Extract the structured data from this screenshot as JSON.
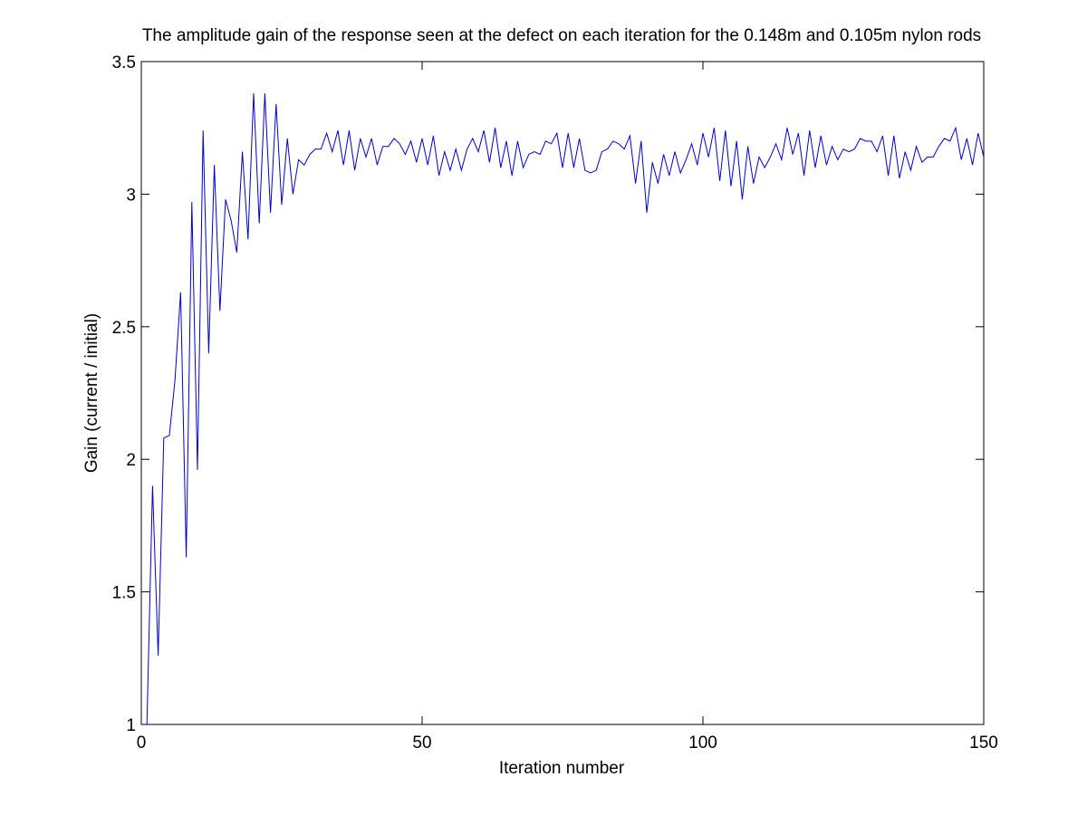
{
  "chart_data": {
    "type": "line",
    "title": "The amplitude gain of the response seen at the defect on each iteration for the 0.148m and 0.105m nylon rods",
    "xlabel": "Iteration number",
    "ylabel": "Gain (current / initial)",
    "xlim": [
      0,
      150
    ],
    "xticks": [
      0,
      50,
      100,
      150
    ],
    "ylim": [
      1,
      3.5
    ],
    "yticks": [
      1,
      1.5,
      2,
      2.5,
      3,
      3.5
    ],
    "x": [
      1,
      2,
      3,
      4,
      5,
      6,
      7,
      8,
      9,
      10,
      11,
      12,
      13,
      14,
      15,
      16,
      17,
      18,
      19,
      20,
      21,
      22,
      23,
      24,
      25,
      26,
      27,
      28,
      29,
      30,
      31,
      32,
      33,
      34,
      35,
      36,
      37,
      38,
      39,
      40,
      41,
      42,
      43,
      44,
      45,
      46,
      47,
      48,
      49,
      50,
      51,
      52,
      53,
      54,
      55,
      56,
      57,
      58,
      59,
      60,
      61,
      62,
      63,
      64,
      65,
      66,
      67,
      68,
      69,
      70,
      71,
      72,
      73,
      74,
      75,
      76,
      77,
      78,
      79,
      80,
      81,
      82,
      83,
      84,
      85,
      86,
      87,
      88,
      89,
      90,
      91,
      92,
      93,
      94,
      95,
      96,
      97,
      98,
      99,
      100,
      101,
      102,
      103,
      104,
      105,
      106,
      107,
      108,
      109,
      110,
      111,
      112,
      113,
      114,
      115,
      116,
      117,
      118,
      119,
      120,
      121,
      122,
      123,
      124,
      125,
      126,
      127,
      128,
      129,
      130,
      131,
      132,
      133,
      134,
      135,
      136,
      137,
      138,
      139,
      140,
      141,
      142,
      143,
      144,
      145,
      146,
      147,
      148,
      149,
      150
    ],
    "series": [
      {
        "color": "#0000cc",
        "values": [
          1.0,
          1.9,
          1.26,
          2.08,
          2.09,
          2.3,
          2.63,
          1.63,
          2.97,
          1.96,
          3.24,
          2.4,
          3.11,
          2.56,
          2.98,
          2.9,
          2.78,
          3.16,
          2.83,
          3.38,
          2.89,
          3.38,
          2.93,
          3.34,
          2.96,
          3.21,
          3.0,
          3.13,
          3.11,
          3.15,
          3.17,
          3.17,
          3.23,
          3.16,
          3.24,
          3.11,
          3.24,
          3.09,
          3.21,
          3.14,
          3.21,
          3.11,
          3.18,
          3.18,
          3.21,
          3.19,
          3.15,
          3.2,
          3.12,
          3.21,
          3.11,
          3.22,
          3.07,
          3.16,
          3.09,
          3.17,
          3.09,
          3.17,
          3.21,
          3.16,
          3.24,
          3.12,
          3.25,
          3.1,
          3.2,
          3.07,
          3.2,
          3.1,
          3.15,
          3.16,
          3.15,
          3.2,
          3.19,
          3.23,
          3.1,
          3.23,
          3.1,
          3.21,
          3.09,
          3.08,
          3.09,
          3.16,
          3.17,
          3.2,
          3.19,
          3.17,
          3.22,
          3.04,
          3.2,
          2.93,
          3.12,
          3.04,
          3.15,
          3.07,
          3.16,
          3.08,
          3.13,
          3.19,
          3.11,
          3.23,
          3.14,
          3.25,
          3.05,
          3.24,
          3.03,
          3.2,
          2.98,
          3.18,
          3.04,
          3.14,
          3.1,
          3.14,
          3.19,
          3.13,
          3.25,
          3.15,
          3.23,
          3.07,
          3.24,
          3.1,
          3.22,
          3.11,
          3.18,
          3.13,
          3.17,
          3.16,
          3.17,
          3.21,
          3.2,
          3.2,
          3.16,
          3.22,
          3.07,
          3.22,
          3.06,
          3.16,
          3.09,
          3.18,
          3.12,
          3.14,
          3.14,
          3.18,
          3.21,
          3.2,
          3.25,
          3.13,
          3.21,
          3.11,
          3.23,
          3.14
        ]
      }
    ]
  }
}
